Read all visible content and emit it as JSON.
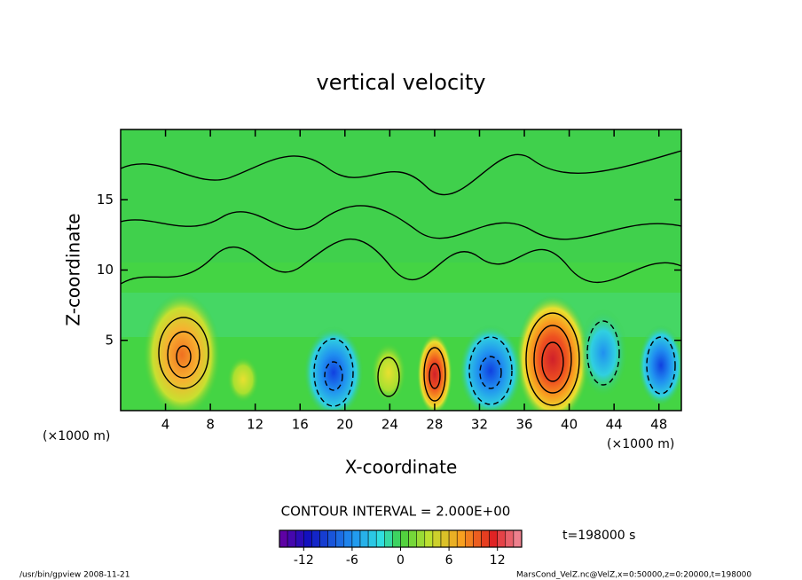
{
  "chart_data": {
    "type": "contour",
    "title": "vertical velocity",
    "xlabel": "X-coordinate",
    "ylabel": "Z-coordinate",
    "xunit": "(×1000 m)",
    "yunit": "(×1000 m)",
    "xlim": [
      0,
      50
    ],
    "xticks": [
      4,
      8,
      12,
      16,
      20,
      24,
      28,
      32,
      36,
      40,
      44,
      48
    ],
    "ylim": [
      0,
      20
    ],
    "yticks": [
      5,
      10,
      15
    ],
    "contour_interval_text": "CONTOUR INTERVAL = 2.000E+00",
    "time_text": "t=198000 s",
    "colorbar_lim": [
      -15,
      15
    ],
    "colorbar_ticks": [
      -12,
      -6,
      0,
      6,
      12
    ],
    "footer_left": "/usr/bin/gpview  2008-11-21",
    "footer_right": "MarsCond_VelZ.nc@VelZ,x=0:50000,z=0:20000,t=198000"
  }
}
